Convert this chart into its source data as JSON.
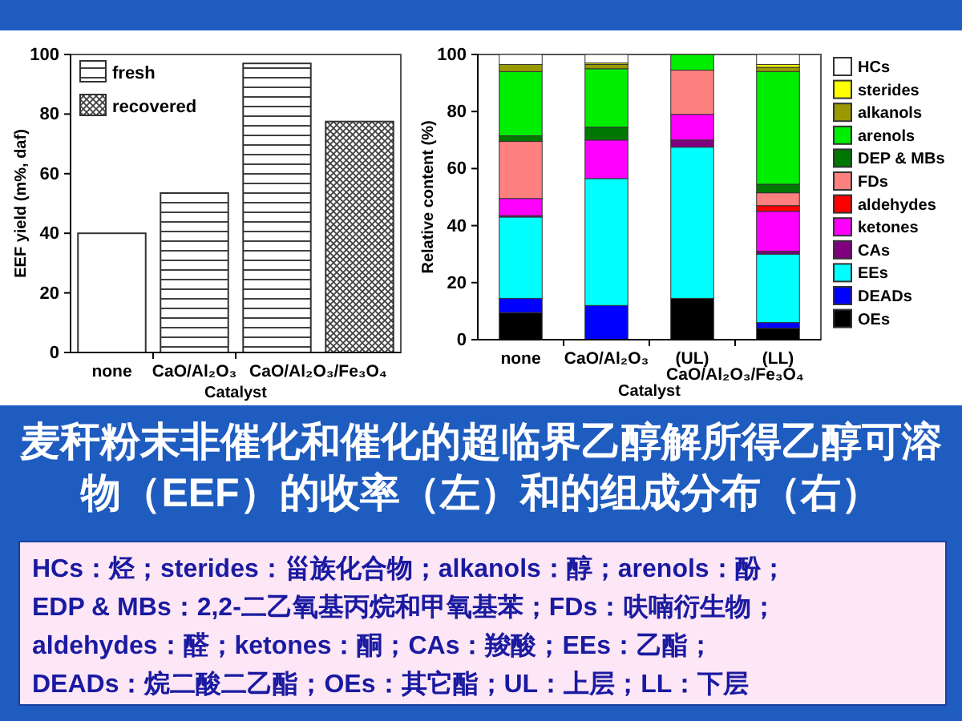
{
  "chart_data": [
    {
      "type": "bar",
      "categories": [
        "none",
        "CaO/Al₂O₃",
        "CaO/Al₂O₃/Fe₃O₄"
      ],
      "xlabel": "Catalyst",
      "ylabel": "EEF yield (m%, daf)",
      "ylim": [
        0,
        100
      ],
      "yticks": [
        0,
        20,
        40,
        60,
        80,
        100
      ],
      "legend": "top left",
      "series": [
        {
          "color": "#ffffff",
          "values": [
            40,
            null,
            null
          ]
        },
        {
          "name": "fresh",
          "color": "#404040",
          "values": [
            null,
            53.5,
            97
          ]
        },
        {
          "name": "recovered",
          "color": "#404040",
          "values": [
            null,
            null,
            77.5
          ]
        }
      ]
    },
    {
      "type": "bar",
      "stacked": true,
      "categories": [
        "none",
        "CaO/Al₂O₃",
        "(UL)",
        "(LL)"
      ],
      "xlabel": "Catalyst",
      "ylabel": "Relative content (%)",
      "ylim": [
        0,
        100
      ],
      "yticks": [
        0,
        20,
        40,
        60,
        80,
        100
      ],
      "legend": "right",
      "annotations": [
        "CaO/Al₂O₃/Fe₃O₄"
      ],
      "series": [
        {
          "name": "OEs",
          "color": "#000000",
          "values": [
            9.5,
            null,
            14.5,
            4
          ]
        },
        {
          "name": "DEADs",
          "color": "#0000ff",
          "values": [
            5,
            12,
            null,
            2
          ]
        },
        {
          "name": "EEs",
          "color": "#00ffff",
          "values": [
            28.5,
            44.5,
            53,
            24
          ]
        },
        {
          "name": "CAs",
          "color": "#800080",
          "values": [
            0.5,
            null,
            2.5,
            1
          ]
        },
        {
          "name": "ketones",
          "color": "#ff00ff",
          "values": [
            6,
            13.5,
            9,
            14
          ]
        },
        {
          "name": "aldehydes",
          "color": "#ff0000",
          "values": [
            null,
            null,
            null,
            2
          ]
        },
        {
          "name": "FDs",
          "color": "#ff8080",
          "values": [
            20,
            null,
            15.5,
            4.5
          ]
        },
        {
          "name": "DEP & MBs",
          "color": "#007700",
          "values": [
            2,
            4.5,
            null,
            3
          ]
        },
        {
          "name": "arenols",
          "color": "#00ee00",
          "values": [
            22.5,
            20.5,
            5.5,
            39.5
          ]
        },
        {
          "name": "alkanols",
          "color": "#999900",
          "values": [
            2.5,
            1.5,
            null,
            1.5
          ]
        },
        {
          "name": "sterides",
          "color": "#ffff00",
          "values": [
            null,
            0.5,
            null,
            1
          ]
        },
        {
          "name": "HCs",
          "color": "#ffffff",
          "values": [
            3.5,
            3,
            null,
            3.5
          ]
        }
      ]
    },
    {
      "type": "other",
      "title": "麦秆粉末非催化和催化的超临界乙醇解所得乙醇可溶物（EEF）的收率（左）和的组成分布（右）",
      "annotations": [
        "HCs：烃；sterides：甾族化合物；alkanols：醇；arenols：酚；",
        "EDP & MBs：2,2-二乙氧基丙烷和甲氧基苯；FDs：呋喃衍生物；",
        "aldehydes：醛；ketones：酮；CAs：羧酸；EEs：乙酯；",
        "DEADs：烷二酸二乙酯；OEs：其它酯；UL：上层；LL：下层"
      ]
    }
  ]
}
